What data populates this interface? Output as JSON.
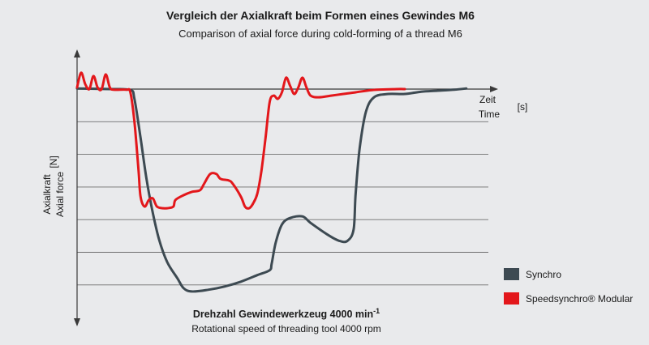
{
  "chart_data": {
    "type": "line",
    "title": "Vergleich der Axialkraft beim Formen eines Gewindes M6",
    "subtitle": "Comparison of axial force during cold-forming of a thread M6",
    "xlabel_de": "Zeit",
    "xlabel_en": "Time",
    "x_unit": "[s]",
    "ylabel_de": "Axialkraft",
    "ylabel_en": "Axial force",
    "y_unit": "[N]",
    "speed_label_de": "Drehzahl Gewindewerkzeug 4000 min",
    "speed_label_de_sup": "-1",
    "speed_label_en": "Rotational speed of threading tool 4000 rpm",
    "xlim": [
      0,
      100
    ],
    "ylim": [
      -6.4,
      1
    ],
    "grid_levels": [
      0,
      -1,
      -2,
      -3,
      -4,
      -5,
      -6
    ],
    "grid": true,
    "legend_position": "bottom-right",
    "series": [
      {
        "name": "Synchro",
        "color": "#3d4a52",
        "points": [
          [
            0,
            0.02
          ],
          [
            8,
            0.0
          ],
          [
            13,
            -0.03
          ],
          [
            14,
            -0.3
          ],
          [
            15.5,
            -1.5
          ],
          [
            17,
            -2.8
          ],
          [
            18.5,
            -3.8
          ],
          [
            20,
            -4.6
          ],
          [
            22,
            -5.3
          ],
          [
            24.5,
            -5.8
          ],
          [
            26,
            -6.1
          ],
          [
            28,
            -6.2
          ],
          [
            32,
            -6.15
          ],
          [
            36,
            -6.05
          ],
          [
            40,
            -5.9
          ],
          [
            44,
            -5.7
          ],
          [
            47,
            -5.55
          ],
          [
            47.5,
            -5.35
          ],
          [
            48.5,
            -4.7
          ],
          [
            50,
            -4.15
          ],
          [
            52,
            -3.95
          ],
          [
            55,
            -3.9
          ],
          [
            57,
            -4.1
          ],
          [
            61,
            -4.45
          ],
          [
            64,
            -4.65
          ],
          [
            66,
            -4.65
          ],
          [
            67.5,
            -4.3
          ],
          [
            68,
            -3.2
          ],
          [
            69,
            -1.8
          ],
          [
            70.5,
            -0.7
          ],
          [
            72.5,
            -0.25
          ],
          [
            76,
            -0.15
          ],
          [
            80,
            -0.15
          ],
          [
            84,
            -0.08
          ],
          [
            88,
            -0.05
          ],
          [
            92,
            -0.02
          ],
          [
            95,
            0.02
          ]
        ]
      },
      {
        "name": "Speedsynchro® Modular",
        "color": "#e3171b",
        "points": [
          [
            0,
            0.05
          ],
          [
            1,
            0.5
          ],
          [
            2,
            0.15
          ],
          [
            3,
            0.0
          ],
          [
            4,
            0.4
          ],
          [
            5,
            0.05
          ],
          [
            6,
            0.0
          ],
          [
            7,
            0.45
          ],
          [
            8,
            0.05
          ],
          [
            9,
            -0.02
          ],
          [
            12,
            -0.02
          ],
          [
            13,
            -0.1
          ],
          [
            14,
            -1.0
          ],
          [
            15,
            -2.5
          ],
          [
            15.5,
            -3.3
          ],
          [
            16.5,
            -3.6
          ],
          [
            17.5,
            -3.4
          ],
          [
            18.5,
            -3.35
          ],
          [
            19.5,
            -3.6
          ],
          [
            21,
            -3.65
          ],
          [
            22,
            -3.65
          ],
          [
            23.5,
            -3.6
          ],
          [
            24,
            -3.4
          ],
          [
            26,
            -3.25
          ],
          [
            28,
            -3.15
          ],
          [
            30,
            -3.1
          ],
          [
            31,
            -2.9
          ],
          [
            32.5,
            -2.6
          ],
          [
            34,
            -2.6
          ],
          [
            35,
            -2.75
          ],
          [
            37,
            -2.8
          ],
          [
            38,
            -2.9
          ],
          [
            40,
            -3.3
          ],
          [
            41,
            -3.6
          ],
          [
            42,
            -3.65
          ],
          [
            43,
            -3.5
          ],
          [
            44,
            -3.2
          ],
          [
            45,
            -2.5
          ],
          [
            46,
            -1.5
          ],
          [
            47,
            -0.4
          ],
          [
            48,
            -0.2
          ],
          [
            49,
            -0.3
          ],
          [
            50,
            -0.1
          ],
          [
            51,
            0.35
          ],
          [
            52,
            0.1
          ],
          [
            53,
            -0.15
          ],
          [
            54,
            0.05
          ],
          [
            55,
            0.35
          ],
          [
            56,
            0.05
          ],
          [
            57,
            -0.2
          ],
          [
            59,
            -0.25
          ],
          [
            62,
            -0.2
          ],
          [
            65,
            -0.15
          ],
          [
            68,
            -0.1
          ],
          [
            72,
            -0.03
          ],
          [
            78,
            0.0
          ],
          [
            80,
            0.0
          ]
        ]
      }
    ]
  }
}
